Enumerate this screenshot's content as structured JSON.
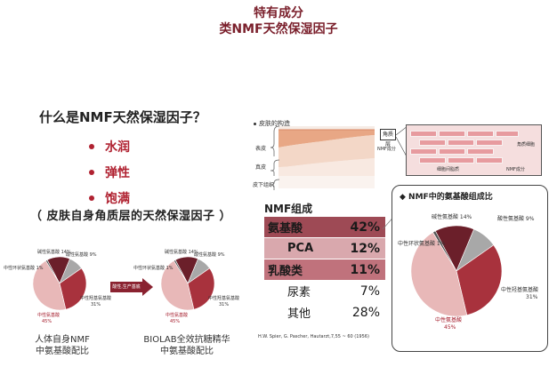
{
  "header": {
    "line1": "特有成分",
    "line2": "类NMF天然保湿因子"
  },
  "left": {
    "question": "什么是NMF天然保湿因子？",
    "bullets": [
      "水润",
      "弹性",
      "饱满"
    ],
    "subtitle": "（ 皮肤自身角质层的天然保湿因子 ）",
    "arrow_label": "酸性,生产基底",
    "pie1_caption": [
      "人体自身NMF",
      "中氨基酸配比"
    ],
    "pie2_caption": [
      "BIOLAB全效抗糖精华",
      "中氨基酸配比"
    ],
    "pie_labels": {
      "basic": "碱性氨基酸 14%",
      "acidic": "酸性氨基酸 9%",
      "cyclic": "中性环状氨基酸 1%",
      "hydroxy": "中性羟基氨基酸",
      "hydroxy_pct": "31%",
      "neutral": "中性氨基酸",
      "neutral_pct": "45%"
    }
  },
  "skin": {
    "title": "皮肤的构造",
    "layers": [
      "表皮",
      "真皮",
      "皮下组织"
    ],
    "callout": "角质层",
    "nmf_label": "NMF成分",
    "zoom_labels": {
      "cell": "角质细胞",
      "lipid": "细胞间脂质",
      "nmf": "NMF成分"
    }
  },
  "nmf": {
    "heading": "NMF组成",
    "rows": [
      {
        "name": "氨基酸",
        "pct": "42%"
      },
      {
        "name": "PCA",
        "pct": "12%"
      },
      {
        "name": "乳酸类",
        "pct": "11%"
      },
      {
        "name": "尿素",
        "pct": "7%"
      },
      {
        "name": "其他",
        "pct": "28%"
      }
    ],
    "citation": "H.W. Spier, G. Pascher, Hautarzt,7,55 ~ 60 (1956)"
  },
  "composition": {
    "title": "◆ NMF中的氨基酸组成比",
    "labels": {
      "basic": "碱性氨基酸 14%",
      "acidic": "酸性氨基酸 9%",
      "cyclic": "中性环状氨基酸 1%",
      "hydroxy": "中性羟基氨基酸",
      "hydroxy_pct": "31%",
      "neutral": "中性氨基酸",
      "neutral_pct": "45%"
    }
  },
  "chart_data": {
    "type": "pie",
    "categories": [
      "碱性氨基酸",
      "酸性氨基酸",
      "中性羟基氨基酸",
      "中性氨基酸",
      "中性环状氨基酸"
    ],
    "values": [
      14,
      9,
      31,
      45,
      1
    ],
    "colors": [
      "#6b1f2a",
      "#a8a8a8",
      "#a8323d",
      "#e8b8b8",
      "#555555"
    ]
  }
}
